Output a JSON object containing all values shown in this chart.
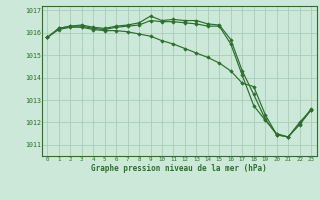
{
  "title": "Graphe pression niveau de la mer (hPa)",
  "bg_color": "#cce8d8",
  "grid_color": "#a8cdb8",
  "line_color": "#2d6e2d",
  "marker_color": "#2d6e2d",
  "ylim": [
    1010.5,
    1017.2
  ],
  "xlim": [
    -0.5,
    23.5
  ],
  "yticks": [
    1011,
    1012,
    1013,
    1014,
    1015,
    1016,
    1017
  ],
  "xticks": [
    0,
    1,
    2,
    3,
    4,
    5,
    6,
    7,
    8,
    9,
    10,
    11,
    12,
    13,
    14,
    15,
    16,
    17,
    18,
    19,
    20,
    21,
    22,
    23
  ],
  "series": [
    [
      1015.8,
      1016.2,
      1016.3,
      1016.35,
      1016.25,
      1016.2,
      1016.3,
      1016.35,
      1016.45,
      1016.75,
      1016.55,
      1016.6,
      1016.55,
      1016.55,
      1016.4,
      1016.35,
      1015.7,
      1014.3,
      1013.25,
      1012.15,
      1011.45,
      1011.35,
      1011.9,
      1012.55
    ],
    [
      1015.8,
      1016.2,
      1016.3,
      1016.3,
      1016.2,
      1016.15,
      1016.25,
      1016.3,
      1016.35,
      1016.55,
      1016.5,
      1016.5,
      1016.45,
      1016.4,
      1016.3,
      1016.3,
      1015.5,
      1014.1,
      1012.75,
      1012.1,
      1011.5,
      1011.35,
      1011.95,
      1012.6
    ],
    [
      1015.8,
      1016.15,
      1016.25,
      1016.25,
      1016.15,
      1016.1,
      1016.1,
      1016.05,
      1015.95,
      1015.85,
      1015.65,
      1015.5,
      1015.3,
      1015.1,
      1014.9,
      1014.65,
      1014.3,
      1013.75,
      1013.6,
      1012.35,
      1011.45,
      1011.35,
      1012.0,
      1012.55
    ]
  ]
}
